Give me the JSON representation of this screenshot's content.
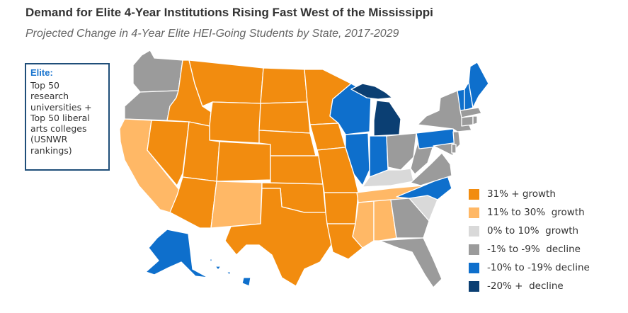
{
  "title": "Demand for Elite 4-Year Institutions Rising Fast West of the Mississippi",
  "subtitle": "Projected Change in 4-Year Elite HEI-Going Students by State, 2017-2029",
  "elite_box": {
    "heading": "Elite:",
    "text": "Top 50\nresearch\nuniversities +\nTop 50 liberal\narts colleges\n(USNWR\nrankings)"
  },
  "colors": {
    "c31": "#f28c0f",
    "c11": "#ffb866",
    "c0": "#d9d9d9",
    "c1": "#9b9b9b",
    "c10": "#0e6fcc",
    "c20": "#0b3f73"
  },
  "legend": [
    {
      "label": "31% + growth",
      "color_key": "c31"
    },
    {
      "label": "11% to 30%  growth",
      "color_key": "c11"
    },
    {
      "label": "0% to 10%  growth",
      "color_key": "c0"
    },
    {
      "label": "-1% to -9%  decline",
      "color_key": "c1"
    },
    {
      "label": "-10% to -19% decline",
      "color_key": "c10"
    },
    {
      "label": "-20% +  decline",
      "color_key": "c20"
    }
  ],
  "states": [
    {
      "name": "Washington",
      "cat": "c1"
    },
    {
      "name": "Oregon",
      "cat": "c1"
    },
    {
      "name": "California",
      "cat": "c11"
    },
    {
      "name": "Nevada",
      "cat": "c31"
    },
    {
      "name": "Idaho",
      "cat": "c31"
    },
    {
      "name": "Montana",
      "cat": "c31"
    },
    {
      "name": "Wyoming",
      "cat": "c31"
    },
    {
      "name": "Utah",
      "cat": "c31"
    },
    {
      "name": "Arizona",
      "cat": "c31"
    },
    {
      "name": "Colorado",
      "cat": "c31"
    },
    {
      "name": "New Mexico",
      "cat": "c11"
    },
    {
      "name": "North Dakota",
      "cat": "c31"
    },
    {
      "name": "South Dakota",
      "cat": "c31"
    },
    {
      "name": "Nebraska",
      "cat": "c31"
    },
    {
      "name": "Kansas",
      "cat": "c31"
    },
    {
      "name": "Oklahoma",
      "cat": "c31"
    },
    {
      "name": "Texas",
      "cat": "c31"
    },
    {
      "name": "Minnesota",
      "cat": "c31"
    },
    {
      "name": "Iowa",
      "cat": "c31"
    },
    {
      "name": "Missouri",
      "cat": "c31"
    },
    {
      "name": "Arkansas",
      "cat": "c31"
    },
    {
      "name": "Louisiana",
      "cat": "c31"
    },
    {
      "name": "Wisconsin",
      "cat": "c10"
    },
    {
      "name": "Illinois",
      "cat": "c10"
    },
    {
      "name": "Michigan Upper Peninsula",
      "cat": "c20"
    },
    {
      "name": "Michigan",
      "cat": "c20"
    },
    {
      "name": "Indiana",
      "cat": "c10"
    },
    {
      "name": "Ohio",
      "cat": "c1"
    },
    {
      "name": "Kentucky",
      "cat": "c0"
    },
    {
      "name": "Tennessee",
      "cat": "c11"
    },
    {
      "name": "Mississippi",
      "cat": "c11"
    },
    {
      "name": "Alabama",
      "cat": "c11"
    },
    {
      "name": "Georgia",
      "cat": "c1"
    },
    {
      "name": "Florida",
      "cat": "c1"
    },
    {
      "name": "South Carolina",
      "cat": "c0"
    },
    {
      "name": "North Carolina",
      "cat": "c10"
    },
    {
      "name": "Virginia",
      "cat": "c1"
    },
    {
      "name": "West Virginia",
      "cat": "c1"
    },
    {
      "name": "Pennsylvania",
      "cat": "c10"
    },
    {
      "name": "New York",
      "cat": "c1"
    },
    {
      "name": "New Jersey",
      "cat": "c1"
    },
    {
      "name": "Maryland",
      "cat": "c1"
    },
    {
      "name": "Delaware",
      "cat": "c1"
    },
    {
      "name": "Vermont",
      "cat": "c10"
    },
    {
      "name": "New Hampshire",
      "cat": "c10"
    },
    {
      "name": "Maine",
      "cat": "c10"
    },
    {
      "name": "Massachusetts",
      "cat": "c1"
    },
    {
      "name": "Connecticut",
      "cat": "c1"
    },
    {
      "name": "Rhode Island",
      "cat": "c1"
    },
    {
      "name": "Alaska",
      "cat": "c10"
    },
    {
      "name": "Hawaii",
      "cat": "c10"
    }
  ]
}
